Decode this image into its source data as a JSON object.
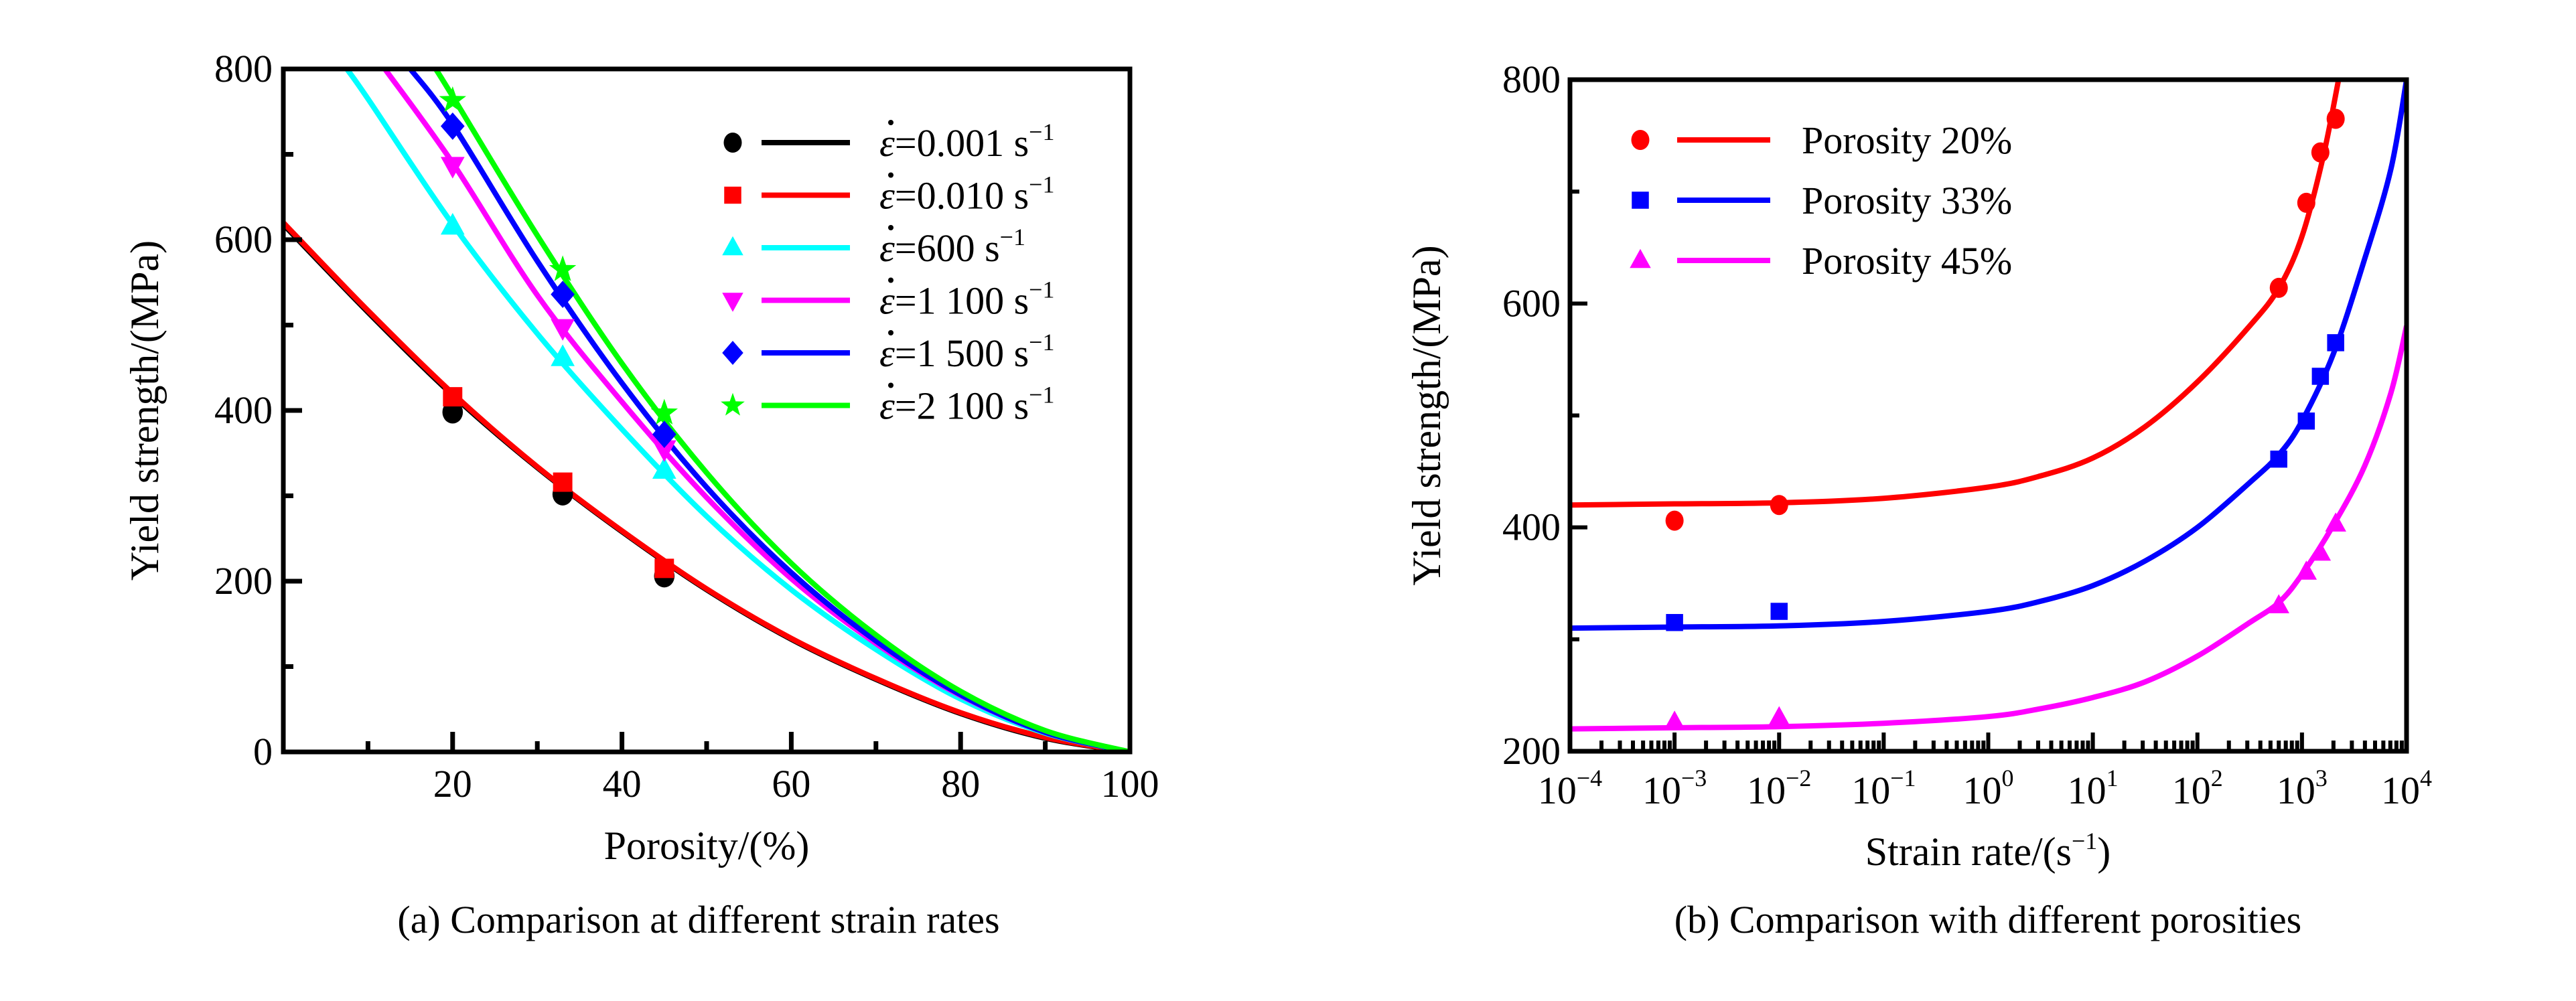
{
  "figure": {
    "panels": [
      "a",
      "b"
    ]
  },
  "chart_data": [
    {
      "id": "a",
      "type": "line",
      "caption": "(a) Comparison at different strain rates",
      "title": "",
      "xlabel": "Porosity/(%)",
      "ylabel": "Yield strength/(MPa)",
      "xlim": [
        0,
        100
      ],
      "ylim": [
        0,
        800
      ],
      "xticks": [
        20,
        40,
        60,
        80,
        100
      ],
      "xtick_labels": [
        "20",
        "40",
        "60",
        "80",
        "100"
      ],
      "xminor": [
        10,
        30,
        50,
        70,
        90
      ],
      "yticks": [
        0,
        200,
        400,
        600,
        800
      ],
      "ytick_labels": [
        "0",
        "200",
        "400",
        "600",
        "800"
      ],
      "yminor": [
        100,
        300,
        500,
        700
      ],
      "grid": false,
      "legend_position": "top-right",
      "series": [
        {
          "name": "ε̇=0.001 s⁻¹",
          "legend_prefix": "ε",
          "legend_value": "=0.001 s",
          "legend_sup": "−1",
          "color": "#000000",
          "marker": "circle",
          "points": [
            [
              20,
              398
            ],
            [
              33,
              302
            ],
            [
              45,
              206
            ]
          ],
          "curve": [
            [
              0,
              618
            ],
            [
              10,
              515
            ],
            [
              20,
              418
            ],
            [
              30,
              333
            ],
            [
              40,
              258
            ],
            [
              50,
              190
            ],
            [
              60,
              132
            ],
            [
              70,
              85
            ],
            [
              80,
              45
            ],
            [
              90,
              16
            ],
            [
              100,
              0
            ]
          ]
        },
        {
          "name": "ε̇=0.010 s⁻¹",
          "legend_prefix": "ε",
          "legend_value": "=0.010 s",
          "legend_sup": "−1",
          "color": "#ff0000",
          "marker": "square",
          "points": [
            [
              20,
              416
            ],
            [
              33,
              316
            ],
            [
              45,
              215
            ]
          ],
          "curve": [
            [
              0,
              620
            ],
            [
              10,
              517
            ],
            [
              20,
              420
            ],
            [
              30,
              334
            ],
            [
              40,
              259
            ],
            [
              50,
              191
            ],
            [
              60,
              133
            ],
            [
              70,
              86
            ],
            [
              80,
              46
            ],
            [
              90,
              17
            ],
            [
              100,
              0
            ]
          ]
        },
        {
          "name": "ε̇=600 s⁻¹",
          "legend_prefix": "ε",
          "legend_value": "=600 s",
          "legend_sup": "−1",
          "color": "#00ffff",
          "marker": "triangle-up",
          "points": [
            [
              20,
              616
            ],
            [
              33,
              462
            ],
            [
              45,
              330
            ]
          ],
          "curve": [
            [
              7.5,
              800
            ],
            [
              10,
              765
            ],
            [
              20,
              618
            ],
            [
              30,
              490
            ],
            [
              40,
              378
            ],
            [
              50,
              276
            ],
            [
              60,
              190
            ],
            [
              70,
              120
            ],
            [
              80,
              62
            ],
            [
              90,
              22
            ],
            [
              100,
              0
            ]
          ]
        },
        {
          "name": "ε̇=1 100 s⁻¹",
          "legend_prefix": "ε",
          "legend_value": "=1 100 s",
          "legend_sup": "−1",
          "color": "#ff00ff",
          "marker": "triangle-down",
          "points": [
            [
              20,
              687
            ],
            [
              33,
              497
            ],
            [
              45,
              355
            ]
          ],
          "curve": [
            [
              12,
              800
            ],
            [
              20,
              690
            ],
            [
              30,
              535
            ],
            [
              40,
              410
            ],
            [
              50,
              298
            ],
            [
              60,
              203
            ],
            [
              70,
              127
            ],
            [
              80,
              66
            ],
            [
              90,
              23
            ],
            [
              100,
              0
            ]
          ]
        },
        {
          "name": "ε̇=1 500 s⁻¹",
          "legend_prefix": "ε",
          "legend_value": "=1 500 s",
          "legend_sup": "−1",
          "color": "#0000ff",
          "marker": "diamond",
          "points": [
            [
              20,
              733
            ],
            [
              33,
              536
            ],
            [
              45,
              372
            ]
          ],
          "curve": [
            [
              15,
              800
            ],
            [
              20,
              735
            ],
            [
              30,
              575
            ],
            [
              40,
              432
            ],
            [
              50,
              310
            ],
            [
              60,
              210
            ],
            [
              70,
              130
            ],
            [
              80,
              67
            ],
            [
              90,
              23
            ],
            [
              100,
              0
            ]
          ]
        },
        {
          "name": "ε̇=2 100 s⁻¹",
          "legend_prefix": "ε",
          "legend_value": "=2 100 s",
          "legend_sup": "−1",
          "color": "#00ff00",
          "marker": "star",
          "points": [
            [
              20,
              763
            ],
            [
              33,
              565
            ],
            [
              45,
              397
            ]
          ],
          "curve": [
            [
              18,
              800
            ],
            [
              20,
              768
            ],
            [
              30,
              605
            ],
            [
              40,
              455
            ],
            [
              50,
              327
            ],
            [
              60,
              221
            ],
            [
              70,
              137
            ],
            [
              80,
              71
            ],
            [
              90,
              25
            ],
            [
              100,
              0
            ]
          ]
        }
      ]
    },
    {
      "id": "b",
      "type": "line",
      "caption": "(b) Comparison with different porosities",
      "title": "",
      "xlabel": "Strain rate/(s",
      "xlabel_sup": "−1",
      "xlabel_suffix": ")",
      "ylabel": "Yield strength/(MPa)",
      "xscale": "log",
      "xlim_log10": [
        -4,
        4
      ],
      "ylim": [
        200,
        800
      ],
      "xticks_log10": [
        -4,
        -3,
        -2,
        -1,
        0,
        1,
        2,
        3,
        4
      ],
      "xtick_labels": [
        {
          "base": "10",
          "exp": "−4"
        },
        {
          "base": "10",
          "exp": "−3"
        },
        {
          "base": "10",
          "exp": "−2"
        },
        {
          "base": "10",
          "exp": "−1"
        },
        {
          "base": "10",
          "exp": "0"
        },
        {
          "base": "10",
          "exp": "1"
        },
        {
          "base": "10",
          "exp": "2"
        },
        {
          "base": "10",
          "exp": "3"
        },
        {
          "base": "10",
          "exp": "4"
        }
      ],
      "yticks": [
        200,
        400,
        600,
        800
      ],
      "ytick_labels": [
        "200",
        "400",
        "600",
        "800"
      ],
      "yminor": [
        300,
        500,
        700
      ],
      "grid": false,
      "legend_position": "top-left",
      "series": [
        {
          "name": "Porosity 20%",
          "color": "#ff0000",
          "marker": "circle",
          "points": [
            [
              0.001,
              406
            ],
            [
              0.01,
              420
            ],
            [
              600,
              614
            ],
            [
              1100,
              690
            ],
            [
              1500,
              735
            ],
            [
              2100,
              765
            ]
          ],
          "curve_log10": [
            [
              -4,
              420
            ],
            [
              -3,
              421
            ],
            [
              -2,
              422
            ],
            [
              -1,
              426
            ],
            [
              0,
              436
            ],
            [
              0.5,
              446
            ],
            [
              1,
              462
            ],
            [
              1.5,
              490
            ],
            [
              2,
              530
            ],
            [
              2.5,
              580
            ],
            [
              2.78,
              614
            ],
            [
              3,
              660
            ],
            [
              3.2,
              730
            ],
            [
              3.35,
              800
            ]
          ]
        },
        {
          "name": "Porosity 33%",
          "color": "#0000ff",
          "marker": "square",
          "points": [
            [
              0.001,
              315
            ],
            [
              0.01,
              325
            ],
            [
              600,
              461
            ],
            [
              1100,
              495
            ],
            [
              1500,
              535
            ],
            [
              2100,
              565
            ]
          ],
          "curve_log10": [
            [
              -4,
              310
            ],
            [
              -3,
              311
            ],
            [
              -2,
              312
            ],
            [
              -1,
              316
            ],
            [
              0,
              325
            ],
            [
              0.5,
              334
            ],
            [
              1,
              348
            ],
            [
              1.5,
              370
            ],
            [
              2,
              400
            ],
            [
              2.5,
              440
            ],
            [
              2.78,
              465
            ],
            [
              3,
              495
            ],
            [
              3.3,
              555
            ],
            [
              3.6,
              640
            ],
            [
              3.85,
              720
            ],
            [
              4,
              800
            ]
          ]
        },
        {
          "name": "Porosity 45%",
          "color": "#ff00ff",
          "marker": "triangle-up",
          "points": [
            [
              0.001,
              226
            ],
            [
              0.01,
              230
            ],
            [
              600,
              330
            ],
            [
              1100,
              360
            ],
            [
              1500,
              377
            ],
            [
              2100,
              403
            ]
          ],
          "curve_log10": [
            [
              -4,
              220
            ],
            [
              -3,
              221
            ],
            [
              -2,
              222
            ],
            [
              -1,
              225
            ],
            [
              0,
              231
            ],
            [
              0.5,
              238
            ],
            [
              1,
              248
            ],
            [
              1.5,
              262
            ],
            [
              2,
              285
            ],
            [
              2.5,
              315
            ],
            [
              2.78,
              333
            ],
            [
              3,
              358
            ],
            [
              3.3,
              402
            ],
            [
              3.6,
              455
            ],
            [
              3.85,
              520
            ],
            [
              4,
              580
            ]
          ]
        }
      ]
    }
  ]
}
